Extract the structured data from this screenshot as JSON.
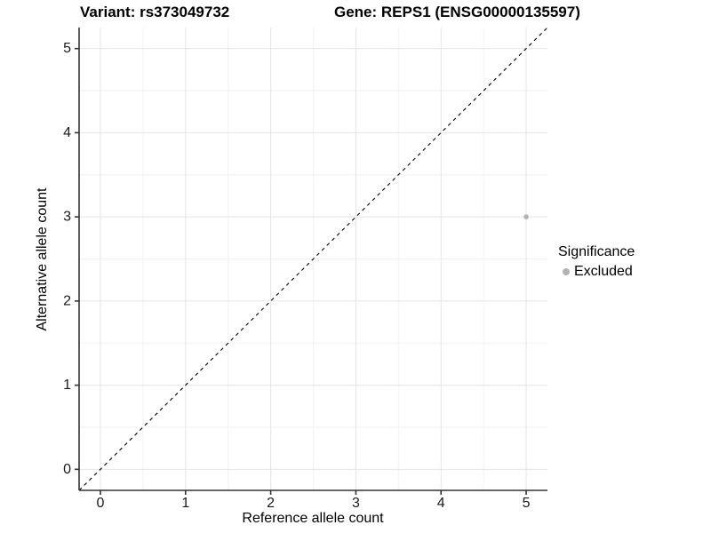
{
  "chart_data": {
    "type": "scatter",
    "title_left": "Variant: rs373049732",
    "title_right": "Gene: REPS1 (ENSG00000135597)",
    "xlabel": "Reference allele count",
    "ylabel": "Alternative allele count",
    "xlim": [
      -0.25,
      5.25
    ],
    "ylim": [
      -0.25,
      5.25
    ],
    "xticks": [
      0,
      1,
      2,
      3,
      4,
      5
    ],
    "yticks": [
      0,
      1,
      2,
      3,
      4,
      5
    ],
    "grid": {
      "major": true,
      "minor": true,
      "minor_step": 0.5
    },
    "points": [
      {
        "x": 5,
        "y": 3,
        "series": "Excluded"
      }
    ],
    "series": [
      {
        "name": "Excluded",
        "color": "#b3b3b3",
        "marker_radius": 2.8
      }
    ],
    "reference_line": {
      "type": "identity",
      "slope": 1,
      "intercept": 0,
      "style": "dashed",
      "color": "#000000"
    },
    "legend": {
      "position": "right",
      "title": "Significance",
      "items": [
        {
          "label": "Excluded",
          "color": "#b3b3b3"
        }
      ]
    }
  },
  "style": {
    "background": "#ffffff",
    "grid_major_color": "#e4e4e4",
    "grid_minor_color": "#f2f2f2",
    "axis_line_color": "#333333",
    "tick_color": "#333333",
    "tick_label_color": "#1a1a1a",
    "title_color": "#000000"
  }
}
